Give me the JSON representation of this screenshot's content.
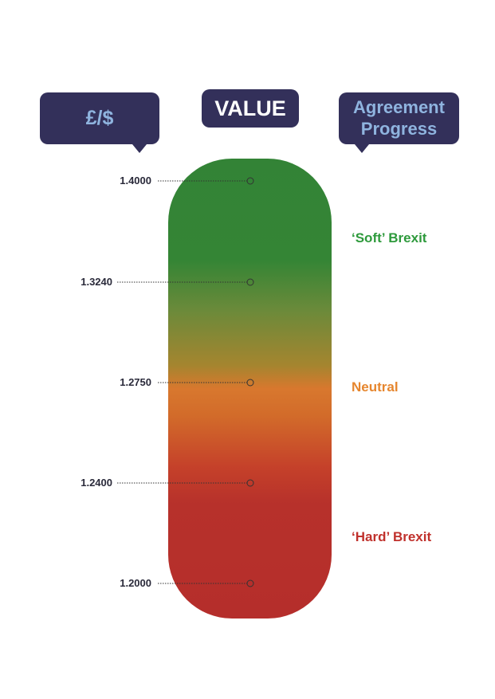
{
  "headers": {
    "currency": "£/$",
    "value": "VALUE",
    "agreement": "Agreement Progress"
  },
  "scale": {
    "ticks": [
      "1.4000",
      "1.3240",
      "1.2750",
      "1.2400",
      "1.2000"
    ]
  },
  "zones": [
    {
      "label": "‘Soft’ Brexit",
      "color": "#2e9a3c"
    },
    {
      "label": "Neutral",
      "color": "#e6862e"
    },
    {
      "label": "‘Hard’ Brexit",
      "color": "#c0312c"
    }
  ],
  "colors": {
    "bubble": "#33305a",
    "bubble_text_light": "#8fb4df",
    "gradient_top": "#338336",
    "gradient_middle": "#d8782e",
    "gradient_bottom": "#b52e2b"
  }
}
